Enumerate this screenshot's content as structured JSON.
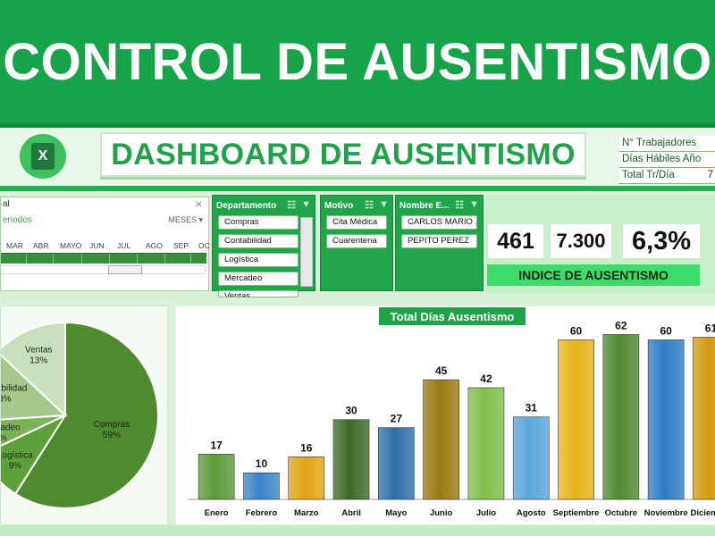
{
  "banner": {
    "title": "CONTROL DE AUSENTISMO"
  },
  "header": {
    "dashboard_title": "DASHBOARD DE AUSENTISMO",
    "app_icon": "excel-icon"
  },
  "info": {
    "rows": [
      {
        "label": "N° Trabajadores",
        "value": ""
      },
      {
        "label": "Días Hábiles Año",
        "value": ""
      },
      {
        "label": "Total Tr/Día",
        "value": "7"
      }
    ]
  },
  "timeline": {
    "title": "al",
    "subtitle": "eriodos",
    "granularity": "MESES",
    "months": [
      "MAR",
      "ABR",
      "MAYO",
      "JUN",
      "JUL",
      "AGO",
      "SEP",
      "OC"
    ]
  },
  "slicers": {
    "departamento": {
      "title": "Departamento",
      "items": [
        "Compras",
        "Contabilidad",
        "Logística",
        "Mercadeo",
        "Ventas"
      ]
    },
    "motivo": {
      "title": "Motivo",
      "items": [
        "Cita Médica",
        "Cuarentena"
      ]
    },
    "nombre": {
      "title": "Nombre E...",
      "items": [
        "CARLOS MARIO ...",
        "PEPITO PEREZ"
      ]
    }
  },
  "kpis": {
    "k1": "461",
    "k2": "7.300",
    "k3": "6,3%",
    "label": "INDICE DE AUSENTISMO"
  },
  "chart_data": [
    {
      "type": "pie",
      "title": "",
      "slices": [
        {
          "label": "Compras",
          "value": 59,
          "display": "59%",
          "color": "#4e8a2e"
        },
        {
          "label": "Logística",
          "value": 9,
          "display": "9%",
          "color": "#5da03a"
        },
        {
          "label": "Mercadeo",
          "value": 6,
          "display": "6%",
          "color": "#7cb35a"
        },
        {
          "label": "Contabilidad",
          "value": 13,
          "display": "13%",
          "color": "#a3c98c"
        },
        {
          "label": "Ventas",
          "value": 13,
          "display": "13%",
          "color": "#c9dfbb"
        }
      ]
    },
    {
      "type": "bar",
      "title": "Total Días Ausentismo",
      "categories": [
        "Enero",
        "Febrero",
        "Marzo",
        "Abril",
        "Mayo",
        "Junio",
        "Julio",
        "Agosto",
        "Septiembre",
        "Octubre",
        "Noviembre",
        "Diciembre"
      ],
      "values": [
        17,
        10,
        16,
        30,
        27,
        45,
        42,
        31,
        60,
        62,
        60,
        61
      ],
      "colors": [
        "#5c9a3a",
        "#3b86c9",
        "#e0a412",
        "#3d6b26",
        "#2e6fa8",
        "#9a7a12",
        "#7fbf4a",
        "#5aa6dc",
        "#e8b41a",
        "#4e8a2e",
        "#2f7dc4",
        "#d49a10"
      ],
      "ylim": [
        0,
        70
      ]
    }
  ]
}
